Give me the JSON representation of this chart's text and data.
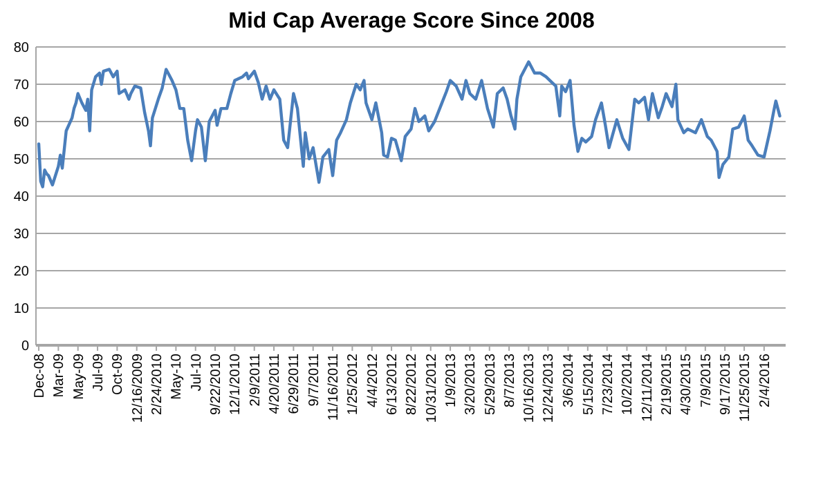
{
  "chart_data": {
    "type": "line",
    "title": "Mid Cap Average Score Since 2008",
    "x": [
      "2008-12-31",
      "2009-01-07",
      "2009-01-14",
      "2009-01-21",
      "2009-01-28",
      "2009-02-04",
      "2009-02-18",
      "2009-03-11",
      "2009-03-18",
      "2009-03-25",
      "2009-04-08",
      "2009-04-29",
      "2009-05-06",
      "2009-05-13",
      "2009-05-20",
      "2009-06-03",
      "2009-06-17",
      "2009-06-24",
      "2009-07-01",
      "2009-07-08",
      "2009-07-22",
      "2009-08-05",
      "2009-08-12",
      "2009-08-19",
      "2009-09-09",
      "2009-09-23",
      "2009-10-07",
      "2009-10-14",
      "2009-11-04",
      "2009-11-18",
      "2009-11-25",
      "2009-12-09",
      "2009-12-30",
      "2010-01-13",
      "2010-01-27",
      "2010-02-03",
      "2010-02-10",
      "2010-03-03",
      "2010-03-17",
      "2010-03-31",
      "2010-04-07",
      "2010-04-21",
      "2010-05-05",
      "2010-05-19",
      "2010-06-02",
      "2010-06-16",
      "2010-06-30",
      "2010-07-14",
      "2010-07-21",
      "2010-08-04",
      "2010-08-18",
      "2010-09-01",
      "2010-09-22",
      "2010-09-29",
      "2010-10-13",
      "2010-11-03",
      "2010-11-17",
      "2010-12-01",
      "2010-12-29",
      "2011-01-12",
      "2011-01-19",
      "2011-02-09",
      "2011-02-23",
      "2011-03-09",
      "2011-03-23",
      "2011-04-06",
      "2011-04-20",
      "2011-05-11",
      "2011-05-25",
      "2011-06-08",
      "2011-06-29",
      "2011-07-13",
      "2011-08-03",
      "2011-08-10",
      "2011-08-24",
      "2011-09-07",
      "2011-09-28",
      "2011-10-12",
      "2011-11-02",
      "2011-11-16",
      "2011-11-30",
      "2011-12-14",
      "2012-01-04",
      "2012-01-18",
      "2012-02-08",
      "2012-02-22",
      "2012-03-07",
      "2012-03-14",
      "2012-04-04",
      "2012-04-18",
      "2012-05-09",
      "2012-05-16",
      "2012-05-30",
      "2012-06-13",
      "2012-06-27",
      "2012-07-18",
      "2012-08-01",
      "2012-08-22",
      "2012-09-05",
      "2012-09-19",
      "2012-10-10",
      "2012-10-24",
      "2012-11-14",
      "2012-12-05",
      "2012-12-26",
      "2013-01-09",
      "2013-01-30",
      "2013-02-20",
      "2013-03-06",
      "2013-03-20",
      "2013-04-10",
      "2013-05-01",
      "2013-05-22",
      "2013-06-12",
      "2013-06-26",
      "2013-07-17",
      "2013-07-31",
      "2013-08-14",
      "2013-08-28",
      "2013-09-04",
      "2013-09-18",
      "2013-10-16",
      "2013-11-06",
      "2013-11-27",
      "2013-12-17",
      "2014-01-07",
      "2014-01-21",
      "2014-02-04",
      "2014-02-11",
      "2014-02-25",
      "2014-03-13",
      "2014-03-27",
      "2014-04-10",
      "2014-04-24",
      "2014-05-08",
      "2014-05-29",
      "2014-06-12",
      "2014-07-03",
      "2014-07-17",
      "2014-07-30",
      "2014-08-27",
      "2014-09-17",
      "2014-10-09",
      "2014-10-30",
      "2014-11-13",
      "2014-12-04",
      "2014-12-18",
      "2015-01-01",
      "2015-01-22",
      "2015-02-05",
      "2015-02-19",
      "2015-03-12",
      "2015-03-26",
      "2015-04-02",
      "2015-04-23",
      "2015-05-07",
      "2015-06-04",
      "2015-06-25",
      "2015-07-16",
      "2015-07-30",
      "2015-08-20",
      "2015-08-27",
      "2015-09-10",
      "2015-10-01",
      "2015-10-15",
      "2015-11-05",
      "2015-11-25",
      "2015-12-09",
      "2015-12-23",
      "2016-01-13",
      "2016-02-04",
      "2016-02-25",
      "2016-03-10",
      "2016-03-17",
      "2016-03-31"
    ],
    "series": [
      {
        "color": "#4a7ebb",
        "values": [
          54,
          44,
          42.5,
          47,
          46,
          45.5,
          43,
          48,
          51,
          47.5,
          57.5,
          61,
          63.5,
          65,
          67.5,
          65,
          63,
          66,
          57.5,
          68.5,
          72,
          73,
          70,
          73.5,
          74,
          72,
          73.5,
          67.5,
          68.5,
          66,
          67.5,
          69.5,
          69,
          62.5,
          57.5,
          53.5,
          61,
          66,
          69,
          74,
          73,
          71,
          68.5,
          63.5,
          63.5,
          55,
          49.5,
          57.5,
          60.5,
          58.5,
          49.5,
          60,
          63,
          59,
          63.5,
          63.5,
          67.5,
          71,
          72,
          73,
          71.5,
          73.5,
          70.5,
          66,
          69.5,
          66,
          68.5,
          66,
          55,
          53,
          67.5,
          63.5,
          48,
          57,
          50,
          53,
          43.7,
          50.5,
          52.5,
          45.5,
          55,
          57,
          60.5,
          65,
          70,
          68.5,
          71,
          65,
          60.5,
          65,
          57,
          51,
          50.5,
          55.5,
          55,
          49.5,
          56,
          58,
          63.5,
          60,
          61.5,
          57.5,
          60,
          64,
          68,
          71,
          69.5,
          66,
          71,
          67.5,
          66,
          71,
          63.5,
          58.5,
          67.5,
          69,
          66,
          61.5,
          58,
          66,
          72,
          76,
          73,
          73,
          72,
          70.5,
          69.5,
          61.5,
          69.5,
          68,
          71,
          59,
          52,
          55.5,
          54.5,
          56,
          60.5,
          65,
          59,
          53,
          60.5,
          55.5,
          52.5,
          66,
          65,
          66.5,
          60.5,
          67.5,
          61,
          64,
          67.5,
          64,
          70,
          60.5,
          57,
          58,
          57,
          60.5,
          56,
          55,
          52,
          45,
          48.5,
          50.5,
          58,
          58.5,
          61.5,
          55,
          53.5,
          51,
          50.5,
          57.5,
          63,
          65.5,
          61.5
        ]
      }
    ],
    "xlim": [
      "2008-12-21",
      "2016-04-21"
    ],
    "xticks": [
      {
        "value": "2008-12-31",
        "label": "Dec-08"
      },
      {
        "value": "2009-03-11",
        "label": "Mar-09"
      },
      {
        "value": "2009-05-20",
        "label": "May-09"
      },
      {
        "value": "2009-07-29",
        "label": "Jul-09"
      },
      {
        "value": "2009-10-07",
        "label": "Oct-09"
      },
      {
        "value": "2009-12-16",
        "label": "12/16/2009"
      },
      {
        "value": "2010-02-24",
        "label": "2/24/2010"
      },
      {
        "value": "2010-05-05",
        "label": "May-10"
      },
      {
        "value": "2010-07-14",
        "label": "Jul-10"
      },
      {
        "value": "2010-09-22",
        "label": "9/22/2010"
      },
      {
        "value": "2010-12-01",
        "label": "12/1/2010"
      },
      {
        "value": "2011-02-09",
        "label": "2/9/2011"
      },
      {
        "value": "2011-04-20",
        "label": "4/20/2011"
      },
      {
        "value": "2011-06-29",
        "label": "6/29/2011"
      },
      {
        "value": "2011-09-07",
        "label": "9/7/2011"
      },
      {
        "value": "2011-11-16",
        "label": "11/16/2011"
      },
      {
        "value": "2012-01-25",
        "label": "1/25/2012"
      },
      {
        "value": "2012-04-04",
        "label": "4/4/2012"
      },
      {
        "value": "2012-06-13",
        "label": "6/13/2012"
      },
      {
        "value": "2012-08-22",
        "label": "8/22/2012"
      },
      {
        "value": "2012-10-31",
        "label": "10/31/2012"
      },
      {
        "value": "2013-01-09",
        "label": "1/9/2013"
      },
      {
        "value": "2013-03-20",
        "label": "3/20/2013"
      },
      {
        "value": "2013-05-29",
        "label": "5/29/2013"
      },
      {
        "value": "2013-08-07",
        "label": "8/7/2013"
      },
      {
        "value": "2013-10-16",
        "label": "10/16/2013"
      },
      {
        "value": "2013-12-24",
        "label": "12/24/2013"
      },
      {
        "value": "2014-03-06",
        "label": "3/6/2014"
      },
      {
        "value": "2014-05-15",
        "label": "5/15/2014"
      },
      {
        "value": "2014-07-23",
        "label": "7/23/2014"
      },
      {
        "value": "2014-10-02",
        "label": "10/2/2014"
      },
      {
        "value": "2014-12-11",
        "label": "12/11/2014"
      },
      {
        "value": "2015-02-19",
        "label": "2/19/2015"
      },
      {
        "value": "2015-04-30",
        "label": "4/30/2015"
      },
      {
        "value": "2015-07-09",
        "label": "7/9/2015"
      },
      {
        "value": "2015-09-17",
        "label": "9/17/2015"
      },
      {
        "value": "2015-11-25",
        "label": "11/25/2015"
      },
      {
        "value": "2016-02-04",
        "label": "2/4/2016"
      }
    ],
    "ylim": [
      0,
      80
    ],
    "yticks": [
      0,
      10,
      20,
      30,
      40,
      50,
      60,
      70,
      80
    ],
    "grid": "y"
  }
}
